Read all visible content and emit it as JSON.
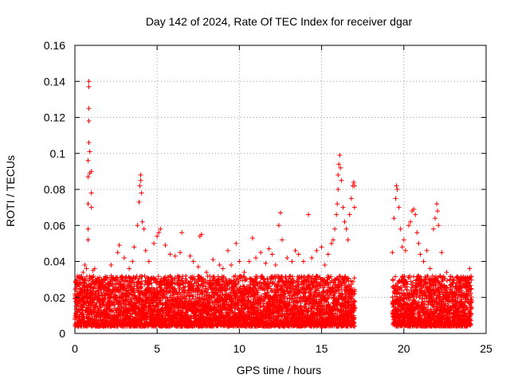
{
  "chart_data": {
    "type": "scatter",
    "title": "Day 142 of 2024, Rate Of TEC Index for receiver dgar",
    "xlabel": "GPS time / hours",
    "ylabel": "ROTI / TECUs",
    "xlim": [
      0,
      25
    ],
    "ylim": [
      0,
      0.16
    ],
    "xticks": [
      "0",
      "5",
      "10",
      "15",
      "20",
      "25"
    ],
    "yticks": [
      "0",
      "0.02",
      "0.04",
      "0.06",
      "0.08",
      "0.1",
      "0.12",
      "0.14",
      "0.16"
    ],
    "grid": true,
    "marker": "+",
    "series": [
      {
        "color": "#ff0000",
        "points": [
          [
            0.1,
            0.028
          ],
          [
            0.2,
            0.031
          ],
          [
            0.3,
            0.025
          ],
          [
            0.5,
            0.034
          ],
          [
            0.6,
            0.038
          ],
          [
            0.7,
            0.036
          ],
          [
            0.8,
            0.052
          ],
          [
            0.8,
            0.058
          ],
          [
            0.8,
            0.072
          ],
          [
            0.8,
            0.087
          ],
          [
            0.8,
            0.096
          ],
          [
            0.85,
            0.106
          ],
          [
            0.85,
            0.118
          ],
          [
            0.85,
            0.125
          ],
          [
            0.85,
            0.137
          ],
          [
            0.85,
            0.14
          ],
          [
            0.9,
            0.089
          ],
          [
            0.9,
            0.101
          ],
          [
            1.0,
            0.09
          ],
          [
            1.0,
            0.078
          ],
          [
            1.0,
            0.07
          ],
          [
            1.1,
            0.035
          ],
          [
            1.2,
            0.036
          ],
          [
            1.5,
            0.026
          ],
          [
            1.8,
            0.03
          ],
          [
            2.0,
            0.028
          ],
          [
            2.2,
            0.038
          ],
          [
            2.4,
            0.03
          ],
          [
            2.6,
            0.045
          ],
          [
            2.7,
            0.049
          ],
          [
            3.0,
            0.042
          ],
          [
            3.3,
            0.036
          ],
          [
            3.5,
            0.04
          ],
          [
            3.6,
            0.048
          ],
          [
            3.8,
            0.06
          ],
          [
            3.9,
            0.073
          ],
          [
            3.95,
            0.082
          ],
          [
            4.0,
            0.088
          ],
          [
            4.0,
            0.085
          ],
          [
            4.05,
            0.078
          ],
          [
            4.1,
            0.062
          ],
          [
            4.2,
            0.058
          ],
          [
            4.3,
            0.046
          ],
          [
            4.5,
            0.04
          ],
          [
            4.8,
            0.05
          ],
          [
            5.0,
            0.054
          ],
          [
            5.1,
            0.056
          ],
          [
            5.2,
            0.058
          ],
          [
            5.5,
            0.049
          ],
          [
            5.8,
            0.044
          ],
          [
            6.1,
            0.043
          ],
          [
            6.4,
            0.045
          ],
          [
            6.5,
            0.056
          ],
          [
            7.0,
            0.043
          ],
          [
            7.2,
            0.04
          ],
          [
            7.5,
            0.037
          ],
          [
            7.6,
            0.054
          ],
          [
            7.7,
            0.055
          ],
          [
            8.0,
            0.034
          ],
          [
            8.4,
            0.041
          ],
          [
            8.8,
            0.038
          ],
          [
            9.0,
            0.036
          ],
          [
            9.3,
            0.046
          ],
          [
            9.5,
            0.038
          ],
          [
            9.8,
            0.05
          ],
          [
            10.0,
            0.04
          ],
          [
            10.3,
            0.034
          ],
          [
            10.6,
            0.04
          ],
          [
            10.8,
            0.053
          ],
          [
            11.0,
            0.042
          ],
          [
            11.3,
            0.045
          ],
          [
            11.6,
            0.039
          ],
          [
            11.8,
            0.047
          ],
          [
            12.0,
            0.044
          ],
          [
            12.2,
            0.038
          ],
          [
            12.4,
            0.06
          ],
          [
            12.5,
            0.067
          ],
          [
            12.6,
            0.052
          ],
          [
            12.9,
            0.042
          ],
          [
            13.2,
            0.04
          ],
          [
            13.4,
            0.046
          ],
          [
            13.6,
            0.044
          ],
          [
            13.9,
            0.04
          ],
          [
            14.2,
            0.066
          ],
          [
            14.4,
            0.042
          ],
          [
            14.7,
            0.046
          ],
          [
            15.0,
            0.048
          ],
          [
            15.2,
            0.038
          ],
          [
            15.4,
            0.044
          ],
          [
            15.6,
            0.05
          ],
          [
            15.7,
            0.052
          ],
          [
            15.8,
            0.058
          ],
          [
            15.9,
            0.066
          ],
          [
            15.95,
            0.072
          ],
          [
            16.0,
            0.08
          ],
          [
            16.0,
            0.088
          ],
          [
            16.05,
            0.094
          ],
          [
            16.1,
            0.099
          ],
          [
            16.15,
            0.092
          ],
          [
            16.2,
            0.085
          ],
          [
            16.3,
            0.07
          ],
          [
            16.4,
            0.062
          ],
          [
            16.5,
            0.058
          ],
          [
            16.6,
            0.052
          ],
          [
            16.7,
            0.066
          ],
          [
            16.8,
            0.075
          ],
          [
            16.9,
            0.082
          ],
          [
            16.95,
            0.084
          ],
          [
            17.0,
            0.082
          ],
          [
            17.0,
            0.07
          ],
          [
            19.3,
            0.045
          ],
          [
            19.4,
            0.064
          ],
          [
            19.5,
            0.075
          ],
          [
            19.55,
            0.082
          ],
          [
            19.6,
            0.08
          ],
          [
            19.7,
            0.07
          ],
          [
            19.8,
            0.058
          ],
          [
            19.9,
            0.048
          ],
          [
            20.0,
            0.052
          ],
          [
            20.1,
            0.046
          ],
          [
            20.3,
            0.06
          ],
          [
            20.4,
            0.062
          ],
          [
            20.5,
            0.068
          ],
          [
            20.6,
            0.069
          ],
          [
            20.7,
            0.066
          ],
          [
            20.8,
            0.056
          ],
          [
            20.9,
            0.05
          ],
          [
            21.0,
            0.044
          ],
          [
            21.2,
            0.04
          ],
          [
            21.4,
            0.046
          ],
          [
            21.6,
            0.036
          ],
          [
            21.8,
            0.058
          ],
          [
            21.9,
            0.064
          ],
          [
            22.0,
            0.072
          ],
          [
            22.05,
            0.068
          ],
          [
            22.1,
            0.06
          ],
          [
            22.3,
            0.045
          ],
          [
            22.6,
            0.034
          ],
          [
            22.8,
            0.03
          ],
          [
            23.0,
            0.028
          ],
          [
            23.3,
            0.027
          ],
          [
            23.6,
            0.029
          ],
          [
            23.8,
            0.026
          ],
          [
            24.0,
            0.036
          ]
        ]
      }
    ],
    "dense_band": {
      "segments": [
        [
          0,
          17.0
        ],
        [
          19.3,
          24.1
        ]
      ],
      "baseline": 0.004,
      "typical_max": 0.032
    }
  }
}
